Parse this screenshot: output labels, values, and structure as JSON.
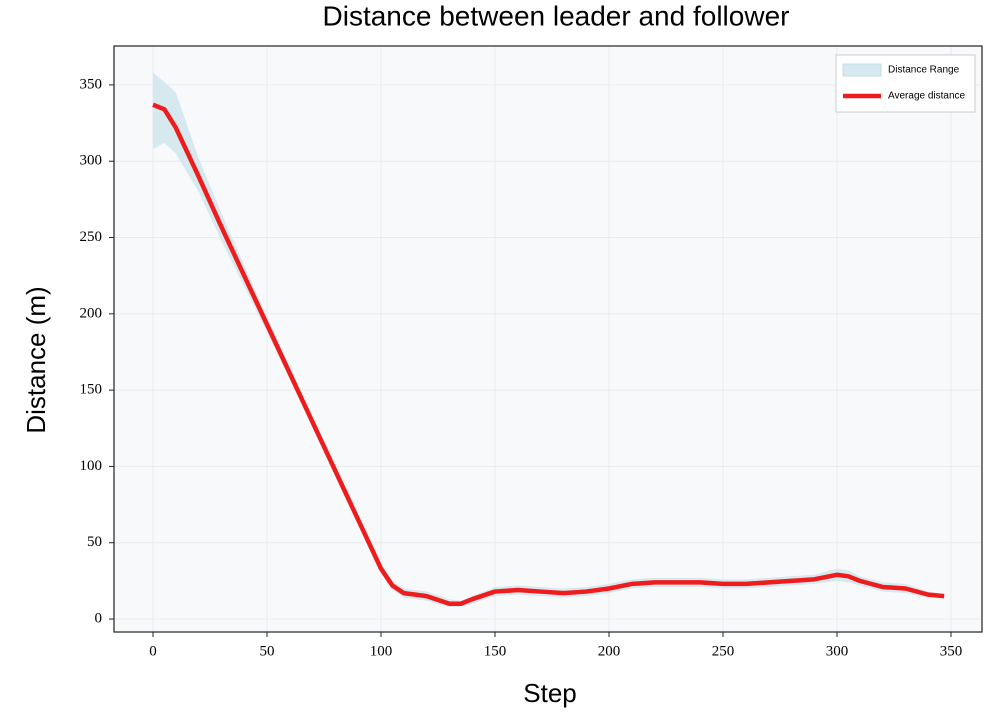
{
  "chart_data": {
    "type": "line",
    "title": "Distance between leader and follower",
    "x_label": "Step",
    "y_label": "Distance (m)",
    "x": [
      0,
      5,
      10,
      20,
      30,
      40,
      50,
      60,
      70,
      80,
      90,
      100,
      105,
      110,
      120,
      130,
      135,
      140,
      150,
      160,
      170,
      180,
      190,
      200,
      210,
      220,
      230,
      240,
      250,
      260,
      270,
      280,
      290,
      300,
      305,
      310,
      320,
      330,
      340,
      347
    ],
    "series": [
      {
        "name": "Average distance",
        "color": "#ee1c1c",
        "values": [
          337,
          334,
          322,
          290,
          257,
          225,
          193,
          161,
          129,
          97,
          65,
          33,
          22,
          17,
          15,
          10,
          10,
          13,
          18,
          19,
          18,
          17,
          18,
          20,
          23,
          24,
          24,
          24,
          23,
          23,
          24,
          25,
          26,
          29,
          28,
          25,
          21,
          20,
          16,
          15
        ]
      }
    ],
    "band": {
      "name": "Distance Range",
      "color": "#d6e9ef",
      "upper": [
        358,
        352,
        345,
        302,
        266,
        232,
        198,
        165,
        132,
        100,
        68,
        36,
        25,
        20,
        18,
        13,
        12,
        15,
        21,
        22,
        21,
        20,
        21,
        23,
        26,
        27,
        27,
        27,
        26,
        26,
        27,
        28,
        29,
        33,
        32,
        28,
        24,
        23,
        18,
        16
      ],
      "lower": [
        308,
        312,
        305,
        280,
        248,
        218,
        188,
        157,
        126,
        94,
        62,
        30,
        19,
        14,
        12,
        8,
        8,
        10,
        15,
        16,
        15,
        14,
        15,
        17,
        20,
        21,
        21,
        21,
        20,
        20,
        21,
        22,
        23,
        25,
        24,
        22,
        18,
        17,
        14,
        14
      ]
    },
    "xlim": [
      -17.1,
      363.6
    ],
    "ylim": [
      -8.5,
      375.5
    ],
    "xticks": [
      0,
      50,
      100,
      150,
      200,
      250,
      300,
      350
    ],
    "yticks": [
      0,
      50,
      100,
      150,
      200,
      250,
      300,
      350
    ],
    "grid": true,
    "legend": "upper right"
  }
}
